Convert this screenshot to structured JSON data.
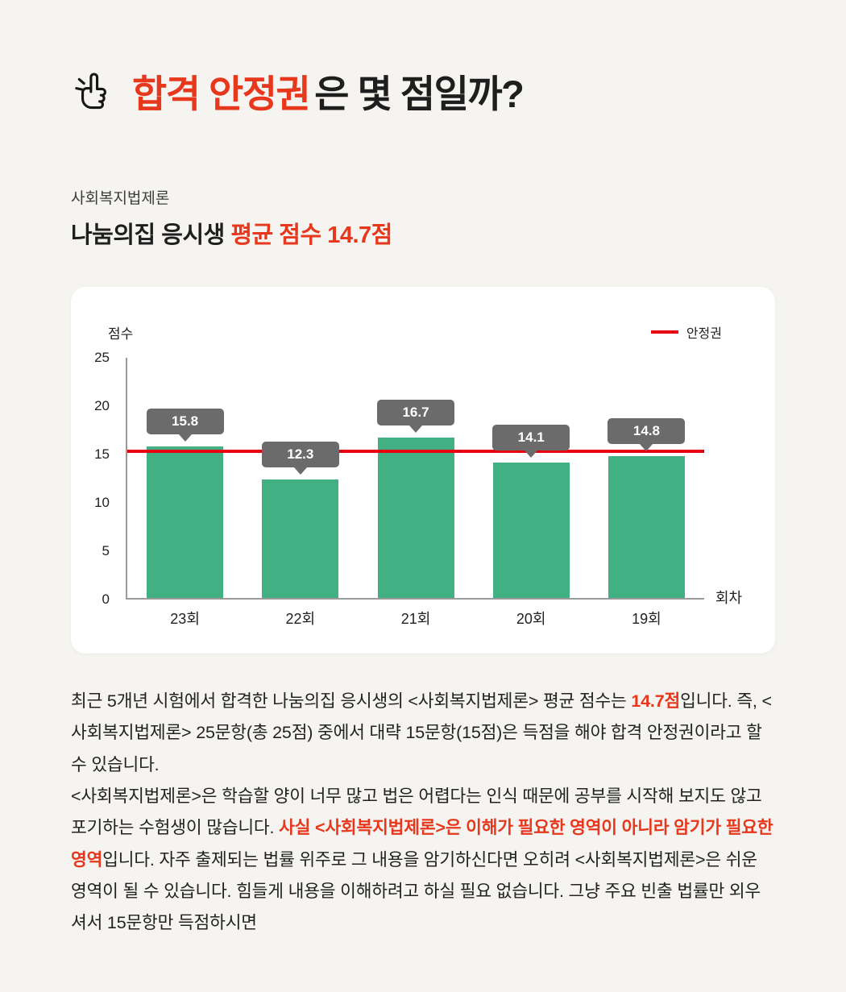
{
  "colors": {
    "accent": "#e7371c",
    "line-red": "#e60012",
    "bar-green": "#41b183",
    "tooltip-gray": "#6b6b6b",
    "page-bg": "#f5f4f1",
    "card-bg": "#ffffff"
  },
  "header": {
    "title_accent": "합격 안정권",
    "title_rest": "은 몇 점일까?",
    "subject": "사회복지법제론",
    "subtitle_plain": "나눔의집 응시생 ",
    "subtitle_accent": "평균 점수 14.7점"
  },
  "chart_data": {
    "type": "bar",
    "categories": [
      "23회",
      "22회",
      "21회",
      "20회",
      "19회"
    ],
    "values": [
      15.8,
      12.3,
      16.7,
      14.1,
      14.8
    ],
    "title": "나눔의집 응시생 평균 점수 14.7점",
    "ylabel": "점수",
    "xlabel": "회차",
    "ylim": [
      0,
      25
    ],
    "ytick_step": 5,
    "threshold": 15.3,
    "threshold_label": "안정권",
    "legend_position": "top-right",
    "grid": false
  },
  "body": {
    "p1": [
      {
        "text": "최근 5개년 시험에서 합격한 나눔의집 응시생의 <사회복지법제론> 평균 점수는 ",
        "em": false
      },
      {
        "text": "14.7점",
        "em": true
      },
      {
        "text": "입니다. 즉, <사회복지법제론> 25문항(총 25점) 중에서 대략 15문항(15점)은 득점을 해야 합격 안정권이라고 할 수 있습니다.",
        "em": false
      }
    ],
    "p2": [
      {
        "text": "<사회복지법제론>은 학습할 양이 너무 많고 법은 어렵다는 인식 때문에 공부를 시작해 보지도 않고 포기하는 수험생이 많습니다. ",
        "em": false
      },
      {
        "text": "사실 <사회복지법제론>은 이해가 필요한 영역이 아니라 암기가 필요한 영역",
        "em": true
      },
      {
        "text": "입니다. 자주 출제되는 법률 위주로 그 내용을 암기하신다면 오히려 <사회복지법제론>은 쉬운 영역이 될 수 있습니다. 힘들게 내용을 이해하려고 하실 필요 없습니다. 그냥 주요 빈출 법률만 외우셔서 15문항만 득점하시면",
        "em": false
      }
    ]
  }
}
